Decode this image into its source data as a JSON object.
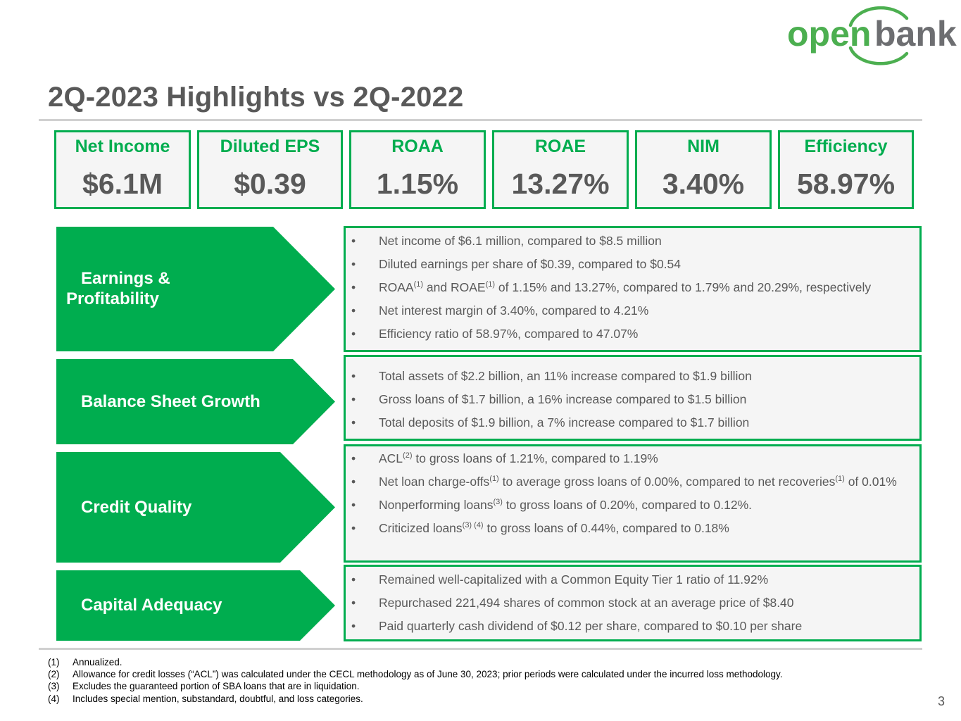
{
  "logo": {
    "word1": "open",
    "word2": "bank",
    "green": "#4caf50",
    "gray": "#6d6e71"
  },
  "title": "2Q-2023 Highlights vs 2Q-2022",
  "metrics": [
    {
      "label": "Net Income",
      "value": "$6.1M"
    },
    {
      "label": "Diluted EPS",
      "value": "$0.39"
    },
    {
      "label": "ROAA",
      "value": "1.15%"
    },
    {
      "label": "ROAE",
      "value": "13.27%"
    },
    {
      "label": "NIM",
      "value": "3.40%"
    },
    {
      "label": "Efficiency",
      "value": "58.97%"
    }
  ],
  "sections": [
    {
      "label_line1": "Earnings &",
      "label_line2": "Profitability",
      "bullets": [
        {
          "text": "Net income of $6.1 million, compared to $8.5 million"
        },
        {
          "text": "Diluted earnings per share of $0.39, compared to $0.54"
        },
        {
          "p1": "ROAA",
          "s1": "(1)",
          "p2": " and ROAE",
          "s2": "(1)",
          "p3": " of 1.15% and 13.27%, compared to 1.79% and 20.29%, respectively"
        },
        {
          "text": "Net interest margin of 3.40%, compared to 4.21%"
        },
        {
          "text": "Efficiency ratio of 58.97%, compared to 47.07%"
        }
      ]
    },
    {
      "label": "Balance Sheet Growth",
      "bullets": [
        {
          "text": "Total assets of $2.2 billion, an 11% increase compared to $1.9 billion"
        },
        {
          "text": "Gross loans of $1.7 billion, a 16% increase compared to $1.5 billion"
        },
        {
          "text": "Total deposits of $1.9 billion, a 7% increase compared to $1.7 billion"
        }
      ]
    },
    {
      "label": "Credit Quality",
      "bullets": [
        {
          "p1": "ACL",
          "s1": "(2)",
          "p2": " to gross loans of 1.21%, compared to 1.19%"
        },
        {
          "p1": "Net loan charge-offs",
          "s1": "(1)",
          "p2": " to average gross loans of 0.00%, compared to net recoveries",
          "s2": "(1)",
          "p3": " of 0.01%"
        },
        {
          "p1": "Nonperforming loans",
          "s1": "(3)",
          "p2": " to gross loans of 0.20%, compared to 0.12%."
        },
        {
          "p1": "Criticized loans",
          "s1": "(3) (4)",
          "p2": " to gross loans of 0.44%, compared to 0.18%"
        }
      ]
    },
    {
      "label": "Capital Adequacy",
      "bullets": [
        {
          "text": "Remained well-capitalized with a Common Equity Tier 1 ratio of 11.92%"
        },
        {
          "text": "Repurchased 221,494 shares of common stock at an average price of $8.40"
        },
        {
          "text": "Paid quarterly cash dividend of $0.12 per share, compared to $0.10 per share"
        }
      ]
    }
  ],
  "footnotes": [
    {
      "num": "(1)",
      "text": "Annualized."
    },
    {
      "num": "(2)",
      "text": "Allowance for credit losses (“ACL”) was calculated under the CECL methodology as of June 30, 2023; prior periods were calculated under the incurred loss methodology."
    },
    {
      "num": "(3)",
      "text": "Excludes the guaranteed portion of SBA loans that are in liquidation."
    },
    {
      "num": "(4)",
      "text": "Includes special mention, substandard, doubtful, and loss categories."
    }
  ],
  "page_number": "3",
  "colors": {
    "accent": "#00ad4f",
    "text": "#595959",
    "panel_bg": "#f5f5f5"
  }
}
